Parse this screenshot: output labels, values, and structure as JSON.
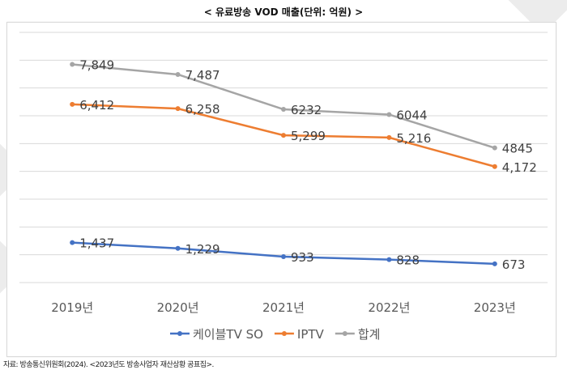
{
  "title": "< 유료방송 VOD 매출(단위: 억원) >",
  "source": "자료: 방송통신위원회(2024). <2023년도 방송사업자 재산상황 공표집>.",
  "chart_data": {
    "type": "line",
    "title": "< 유료방송 VOD 매출(단위: 억원) >",
    "categories": [
      "2019년",
      "2020년",
      "2021년",
      "2022년",
      "2023년"
    ],
    "ylim": [
      0,
      9000
    ],
    "grid": true,
    "y_axis_labels_shown": false,
    "legend": "bottom",
    "series": [
      {
        "name": "케이블TV SO",
        "color": "#4472c4",
        "values": [
          1437,
          1229,
          933,
          828,
          673
        ],
        "labels": [
          "1,437",
          "1,229",
          "933",
          "828",
          "673"
        ]
      },
      {
        "name": "IPTV",
        "color": "#ed7d31",
        "values": [
          6412,
          6258,
          5299,
          5216,
          4172
        ],
        "labels": [
          "6,412",
          "6,258",
          "5,299",
          "5,216",
          "4,172"
        ]
      },
      {
        "name": "합계",
        "color": "#a5a5a5",
        "values": [
          7849,
          7487,
          6232,
          6044,
          4845
        ],
        "labels": [
          "7,849",
          "7,487",
          "6232",
          "6044",
          "4845"
        ]
      }
    ]
  }
}
